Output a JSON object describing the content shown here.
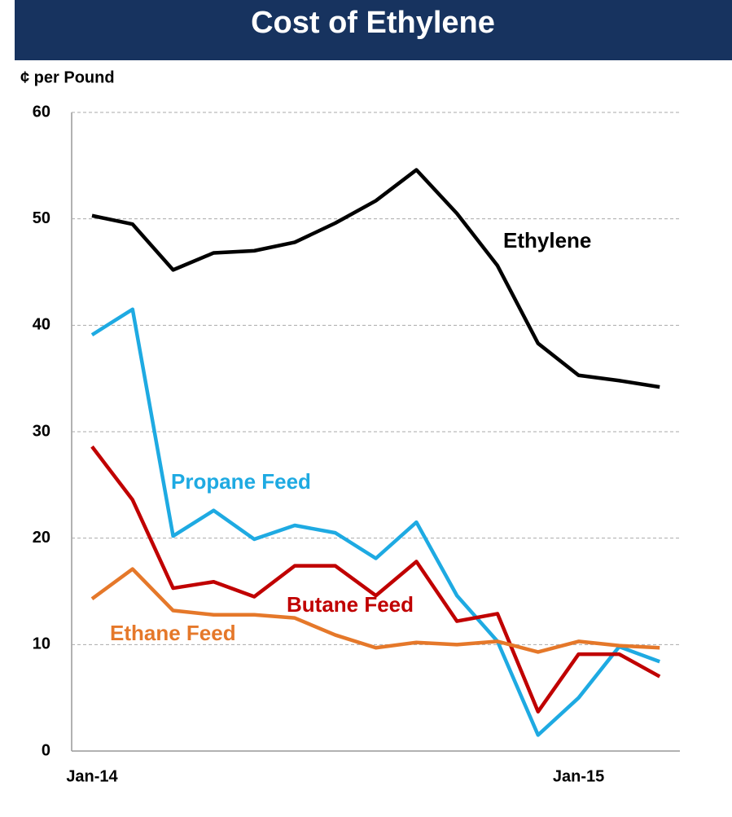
{
  "chart_data": {
    "type": "line",
    "title": "Cost of Ethylene",
    "y_label": "¢ per Pound",
    "categories": [
      "Jan-14",
      null,
      null,
      null,
      null,
      null,
      null,
      null,
      null,
      null,
      null,
      null,
      "Jan-15",
      null,
      null
    ],
    "series": [
      {
        "name": "Ethylene",
        "color": "#000000",
        "values": [
          50.3,
          49.5,
          45.2,
          46.8,
          47.0,
          47.8,
          49.6,
          51.7,
          54.6,
          50.5,
          45.6,
          38.3,
          35.3,
          34.8,
          34.2
        ]
      },
      {
        "name": "Propane Feed",
        "color": "#1eaae2",
        "values": [
          39.1,
          41.5,
          20.2,
          22.6,
          19.9,
          21.2,
          20.5,
          18.1,
          21.5,
          14.6,
          10.3,
          1.5,
          5.0,
          9.8,
          8.4
        ]
      },
      {
        "name": "Butane Feed",
        "color": "#c00000",
        "values": [
          28.6,
          23.6,
          15.3,
          15.9,
          14.5,
          17.4,
          17.4,
          14.6,
          17.8,
          12.2,
          12.9,
          3.7,
          9.1,
          9.1,
          7.0
        ]
      },
      {
        "name": "Ethane Feed",
        "color": "#e5782a",
        "values": [
          14.3,
          17.1,
          13.2,
          12.8,
          12.8,
          12.5,
          10.9,
          9.7,
          10.2,
          10.0,
          10.3,
          9.3,
          10.3,
          9.9,
          9.7
        ]
      }
    ],
    "ylim": [
      0,
      60
    ],
    "yticks": [
      0,
      10,
      20,
      30,
      40,
      50,
      60
    ],
    "grid": true
  }
}
